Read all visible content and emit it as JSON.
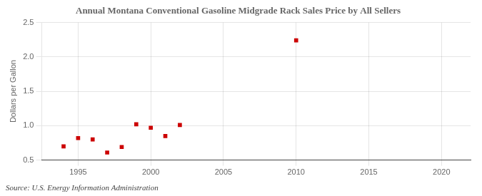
{
  "chart_data": {
    "type": "scatter",
    "title": "Annual Montana Conventional Gasoline Midgrade Rack Sales Price by All Sellers",
    "ylabel": "Dollars per Gallon",
    "annotation": "Source: U.S. Energy Information Administration",
    "x": [
      1994,
      1995,
      1996,
      1997,
      1998,
      1999,
      2000,
      2001,
      2002,
      2010
    ],
    "values": [
      0.7,
      0.82,
      0.8,
      0.61,
      0.69,
      1.02,
      0.97,
      0.85,
      1.01,
      2.24
    ],
    "color": "#cc0000",
    "marker": "square",
    "xlim": [
      1992.5,
      2022
    ],
    "ylim": [
      0.5,
      2.5
    ],
    "xticks": [
      1995,
      2000,
      2005,
      2010,
      2015,
      2020
    ],
    "yticks": [
      0.5,
      {
        "value": 1.0,
        "label": "1.0"
      },
      1.5,
      {
        "value": 2.0,
        "label": "2.0"
      },
      2.5
    ],
    "grid": true
  }
}
